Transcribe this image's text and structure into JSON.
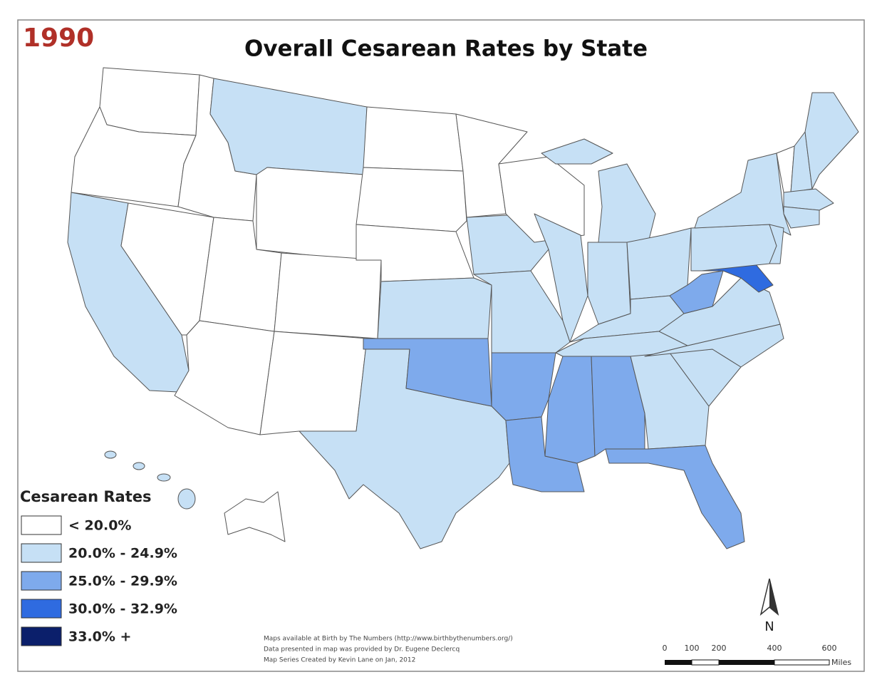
{
  "header": {
    "year": "1990",
    "title": "Overall Cesarean Rates by State"
  },
  "legend": {
    "title": "Cesarean Rates",
    "items": [
      {
        "label": "< 20.0%",
        "color": "#ffffff"
      },
      {
        "label": "20.0% - 24.9%",
        "color": "#c6e0f5"
      },
      {
        "label": "25.0% - 29.9%",
        "color": "#7eaaec"
      },
      {
        "label": "30.0% - 32.9%",
        "color": "#2f6be0"
      },
      {
        "label": "33.0% +",
        "color": "#0b1f6b"
      }
    ]
  },
  "credits": [
    "Maps available at Birth by The Numbers (http://www.birthbythenumbers.org/)",
    "Data presented in map was provided by Dr. Eugene Declercq",
    "Map Series Created by Kevin Lane on Jan, 2012"
  ],
  "scale": {
    "labels": [
      "0",
      "100",
      "200",
      "400",
      "600"
    ],
    "unit": "Miles"
  },
  "north": "N"
}
